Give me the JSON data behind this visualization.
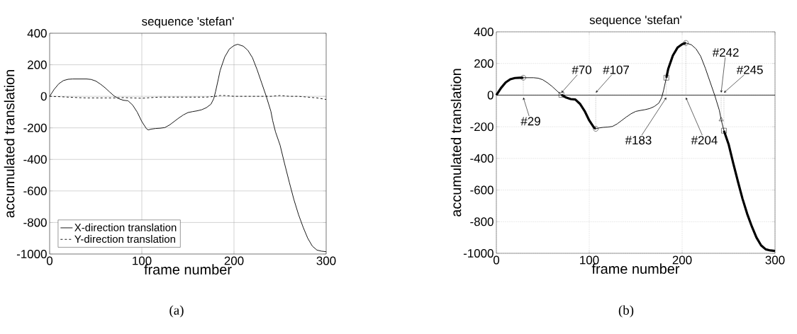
{
  "chart_data": [
    {
      "type": "line",
      "title": "sequence 'stefan'",
      "xlabel": "frame number",
      "ylabel": "accumulated translation",
      "xlim": [
        0,
        300
      ],
      "ylim": [
        -1000,
        400
      ],
      "xticks": [
        0,
        100,
        200,
        300
      ],
      "yticks": [
        -1000,
        -800,
        -600,
        -400,
        -200,
        0,
        200,
        400
      ],
      "grid": true,
      "legend": "bottom left",
      "marker": "none",
      "series": [
        {
          "name": "X-direction translation",
          "color": "#000000",
          "line_style": "solid",
          "x": [
            0,
            5,
            10,
            15,
            20,
            25,
            29,
            35,
            40,
            45,
            50,
            55,
            60,
            65,
            70,
            75,
            80,
            85,
            90,
            95,
            100,
            105,
            107,
            110,
            115,
            120,
            125,
            130,
            135,
            140,
            145,
            150,
            155,
            160,
            165,
            170,
            175,
            178,
            180,
            183,
            185,
            190,
            195,
            200,
            204,
            210,
            215,
            220,
            225,
            230,
            235,
            240,
            242,
            245,
            250,
            255,
            260,
            265,
            270,
            275,
            280,
            285,
            290,
            295,
            300
          ],
          "values": [
            0,
            45,
            80,
            100,
            108,
            110,
            110,
            110,
            110,
            107,
            97,
            78,
            55,
            28,
            2,
            -15,
            -25,
            -28,
            -55,
            -100,
            -160,
            -205,
            -213,
            -208,
            -204,
            -202,
            -198,
            -182,
            -160,
            -138,
            -118,
            -103,
            -97,
            -92,
            -85,
            -72,
            -50,
            -15,
            30,
            110,
            165,
            250,
            300,
            322,
            330,
            318,
            292,
            245,
            170,
            85,
            0,
            -95,
            -155,
            -225,
            -310,
            -430,
            -545,
            -655,
            -750,
            -830,
            -900,
            -950,
            -975,
            -982,
            -985
          ]
        },
        {
          "name": "Y-direction translation",
          "color": "#000000",
          "line_style": "dashed",
          "x": [
            0,
            10,
            20,
            30,
            40,
            50,
            60,
            70,
            80,
            90,
            100,
            110,
            120,
            130,
            140,
            150,
            160,
            170,
            180,
            185,
            190,
            200,
            210,
            220,
            230,
            240,
            250,
            260,
            270,
            280,
            290,
            300
          ],
          "values": [
            0,
            -2,
            -5,
            -8,
            -10,
            -10,
            -10,
            -10,
            -8,
            -10,
            -12,
            -8,
            -5,
            -5,
            -5,
            -5,
            -5,
            -5,
            0,
            5,
            5,
            0,
            0,
            0,
            0,
            0,
            5,
            0,
            0,
            -5,
            -10,
            -20
          ]
        }
      ],
      "annotations": [
        "(a)"
      ]
    },
    {
      "type": "line",
      "title": "sequence 'stefan'",
      "xlabel": "frame number",
      "ylabel": "accumulated translation",
      "xlim": [
        0,
        300
      ],
      "ylim": [
        -1000,
        400
      ],
      "xticks": [
        0,
        100,
        200,
        300
      ],
      "yticks": [
        -1000,
        -800,
        -600,
        -400,
        -200,
        0,
        200,
        400
      ],
      "grid": true,
      "marker": "none",
      "ref_lines": [
        {
          "axis": "y",
          "value": 0,
          "color": "#000000",
          "line_style": "solid"
        }
      ],
      "series": [
        {
          "color": "#000000",
          "line_style": "solid",
          "x": [
            0,
            5,
            10,
            15,
            20,
            25,
            29,
            35,
            40,
            45,
            50,
            55,
            60,
            65,
            70,
            75,
            80,
            85,
            90,
            95,
            100,
            105,
            107,
            110,
            115,
            120,
            125,
            130,
            135,
            140,
            145,
            150,
            155,
            160,
            165,
            170,
            175,
            178,
            180,
            183,
            185,
            190,
            195,
            200,
            204,
            210,
            215,
            220,
            225,
            230,
            235,
            240,
            242,
            245,
            250,
            255,
            260,
            265,
            270,
            275,
            280,
            285,
            290,
            295,
            300
          ],
          "values": [
            0,
            45,
            80,
            100,
            108,
            110,
            110,
            110,
            110,
            107,
            97,
            78,
            55,
            28,
            2,
            -15,
            -25,
            -28,
            -55,
            -100,
            -160,
            -205,
            -213,
            -208,
            -204,
            -202,
            -198,
            -182,
            -160,
            -138,
            -118,
            -103,
            -97,
            -92,
            -85,
            -72,
            -50,
            -15,
            30,
            110,
            165,
            250,
            300,
            322,
            330,
            318,
            292,
            245,
            170,
            85,
            0,
            -95,
            -155,
            -225,
            -310,
            -430,
            -545,
            -655,
            -750,
            -830,
            -900,
            -950,
            -975,
            -982,
            -985
          ]
        },
        {
          "color": "#000000",
          "line_style": "solid",
          "x": [
            0,
            5,
            10,
            15,
            20,
            25,
            29
          ],
          "values": [
            0,
            45,
            80,
            100,
            108,
            110,
            110
          ]
        },
        {
          "color": "#000000",
          "line_style": "solid",
          "x": [
            70,
            75,
            80,
            85,
            90,
            95,
            100,
            105,
            107
          ],
          "values": [
            2,
            -15,
            -25,
            -28,
            -55,
            -100,
            -160,
            -205,
            -213
          ]
        },
        {
          "color": "#000000",
          "line_style": "solid",
          "x": [
            183,
            185,
            190,
            195,
            200,
            204
          ],
          "values": [
            110,
            165,
            250,
            300,
            322,
            330
          ]
        },
        {
          "color": "#000000",
          "line_style": "solid",
          "x": [
            245,
            250,
            255,
            260,
            265,
            270,
            275,
            280,
            285,
            290,
            295,
            300
          ],
          "values": [
            -225,
            -310,
            -430,
            -545,
            -655,
            -750,
            -830,
            -900,
            -950,
            -975,
            -982,
            -985
          ]
        },
        {
          "type": "lollipop",
          "marker": "circle",
          "color": "#000000",
          "x": [
            29,
            107,
            204
          ],
          "values": [
            110,
            -213,
            330
          ]
        },
        {
          "type": "lollipop",
          "marker": "square",
          "color": "#000000",
          "x": [
            70,
            183,
            245
          ],
          "values": [
            2,
            110,
            -225
          ]
        },
        {
          "type": "lollipop",
          "marker": "triangle",
          "color": "#000000",
          "x": [
            242
          ],
          "values": [
            -155
          ]
        }
      ],
      "annotations": [
        {
          "text": "#29",
          "x": 29,
          "y": 0
        },
        {
          "text": "#70",
          "x": 70,
          "y": 0
        },
        {
          "text": "#107",
          "x": 107,
          "y": 0
        },
        {
          "text": "#183",
          "x": 183,
          "y": 0
        },
        {
          "text": "#204",
          "x": 204,
          "y": 0
        },
        {
          "text": "#242",
          "x": 242,
          "y": 0
        },
        {
          "text": "#245",
          "x": 245,
          "y": 0
        },
        "(b)"
      ]
    }
  ]
}
